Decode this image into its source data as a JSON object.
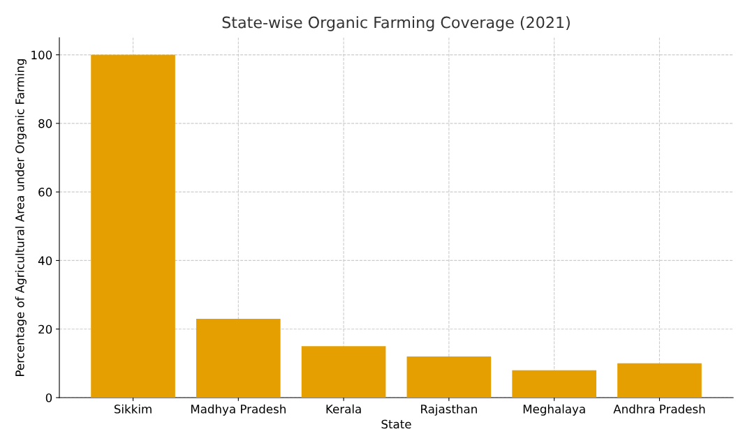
{
  "chart_data": {
    "type": "bar",
    "title": "State-wise Organic Farming Coverage (2021)",
    "xlabel": "State",
    "ylabel": "Percentage of Agricultural Area under Organic Farming",
    "categories": [
      "Sikkim",
      "Madhya Pradesh",
      "Kerala",
      "Rajasthan",
      "Meghalaya",
      "Andhra Pradesh"
    ],
    "values": [
      100,
      23,
      15,
      12,
      8,
      10
    ],
    "color": "#e69f00",
    "ylim": [
      0,
      105
    ],
    "yticks": [
      0,
      20,
      40,
      60,
      80,
      100
    ],
    "grid": true
  }
}
